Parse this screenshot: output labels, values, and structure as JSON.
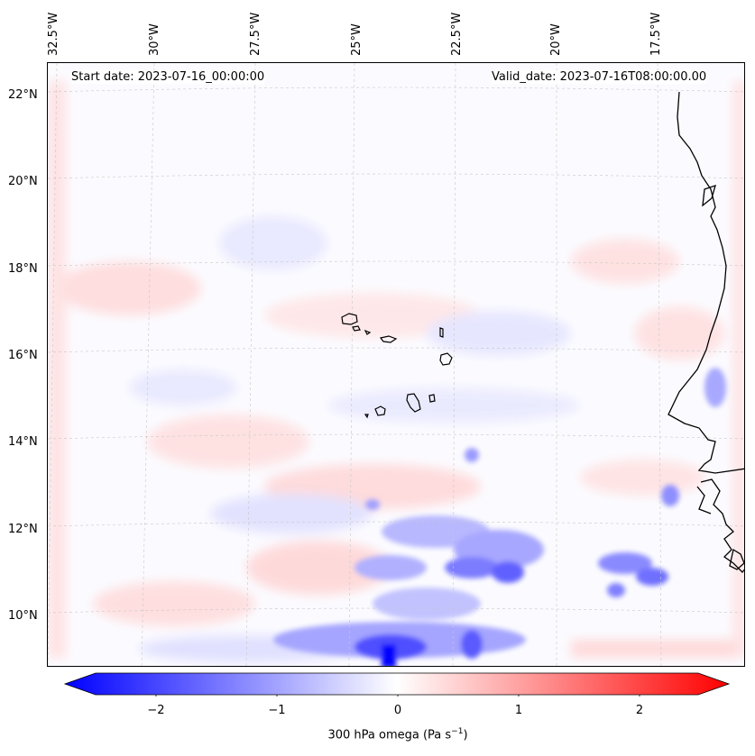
{
  "map": {
    "start_date": "Start date: 2023-07-16_00:00:00",
    "valid_date": "Valid_date: 2023-07-16T08:00:00.00",
    "lon_labels": [
      "32.5°W",
      "30°W",
      "27.5°W",
      "25°W",
      "22.5°W",
      "20°W",
      "17.5°W"
    ],
    "lat_labels": [
      "22°N",
      "20°N",
      "18°N",
      "16°N",
      "14°N",
      "12°N",
      "10°N"
    ],
    "gridlines": true
  },
  "colorbar": {
    "ticks": [
      "−2",
      "−1",
      "0",
      "1",
      "2"
    ],
    "label": "300 hPa omega (Pa s",
    "label_sup": "−1",
    "label_end": ")",
    "range": [
      -2.5,
      2.5
    ],
    "colors": {
      "min": "#0000ff",
      "mid": "#ffffff",
      "max": "#ff0000"
    }
  }
}
